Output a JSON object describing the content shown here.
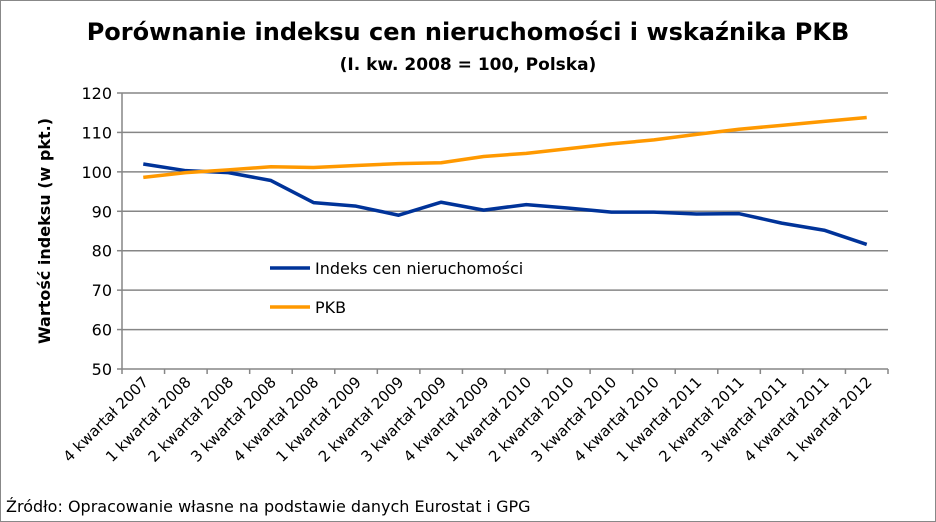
{
  "chart_data": {
    "type": "line",
    "title": "Porównanie indeksu cen nieruchomości i wskaźnika PKB",
    "subtitle": "(I. kw. 2008 = 100, Polska)",
    "xlabel": "",
    "ylabel": "Wartość indeksu (w pkt.)",
    "ylim": [
      50,
      120
    ],
    "yticks": [
      50,
      60,
      70,
      80,
      90,
      100,
      110,
      120
    ],
    "grid": true,
    "legend_position": "center-left inside",
    "categories": [
      "4 kwartał 2007",
      "1 kwartał 2008",
      "2 kwartał 2008",
      "3 kwartał 2008",
      "4 kwartał 2008",
      "1 kwartał 2009",
      "2 kwartał 2009",
      "3 kwartał 2009",
      "4 kwartał 2009",
      "1 kwartał 2010",
      "2 kwartał 2010",
      "3 kwartał 2010",
      "4 kwartał 2010",
      "1 kwartał 2011",
      "2 kwartał 2011",
      "3 kwartał 2011",
      "4 kwartał 2011",
      "1 kwartał 2012"
    ],
    "series": [
      {
        "name": "Indeks cen nieruchomości",
        "color": "#003399",
        "values": [
          102.0,
          100.3,
          99.8,
          97.8,
          92.2,
          91.3,
          89.0,
          92.3,
          90.3,
          91.7,
          90.8,
          89.8,
          89.8,
          89.3,
          89.4,
          87.0,
          85.2,
          81.6
        ]
      },
      {
        "name": "PKB",
        "color": "#ff9900",
        "values": [
          98.6,
          99.8,
          100.5,
          101.3,
          101.1,
          101.6,
          102.1,
          102.3,
          103.9,
          104.7,
          105.9,
          107.1,
          108.1,
          109.5,
          110.8,
          111.8,
          112.8,
          113.8
        ]
      }
    ]
  },
  "source": "Źródło: Opracowanie własne na podstawie danych Eurostat i GPG"
}
